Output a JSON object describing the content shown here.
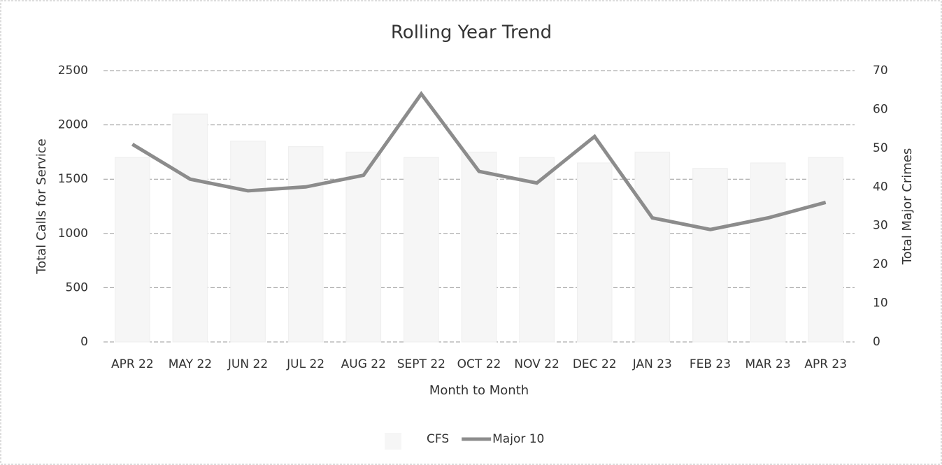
{
  "chart_data": {
    "type": "bar",
    "title": "Rolling Year Trend",
    "x_label": "Month to Month",
    "y_label": "Total Calls for Service",
    "y2_label": "Total Major Crimes",
    "categories": [
      "APR 22",
      "MAY 22",
      "JUN 22",
      "JUL 22",
      "AUG 22",
      "SEPT 22",
      "OCT 22",
      "NOV 22",
      "DEC 22",
      "JAN 23",
      "FEB 23",
      "MAR 23",
      "APR 23"
    ],
    "series": [
      {
        "name": "CFS",
        "type": "bar",
        "color": "#f6f6f6",
        "values": [
          1700,
          2100,
          1850,
          1800,
          1750,
          1700,
          1750,
          1700,
          1650,
          1750,
          1600,
          1650,
          1700
        ]
      },
      {
        "name": "Major 10",
        "type": "line",
        "axis": "y2",
        "color": "#8c8c8c",
        "values": [
          51,
          42,
          39,
          40,
          43,
          64,
          44,
          41,
          53,
          32,
          29,
          32,
          36
        ]
      }
    ],
    "ylim": [
      0,
      2500
    ],
    "yticks": [
      0,
      500,
      1000,
      1500,
      2000,
      2500
    ],
    "y2lim": [
      0,
      70
    ],
    "y2ticks": [
      0,
      10,
      20,
      30,
      40,
      50,
      60,
      70
    ],
    "grid": true,
    "legend": "bottom"
  }
}
